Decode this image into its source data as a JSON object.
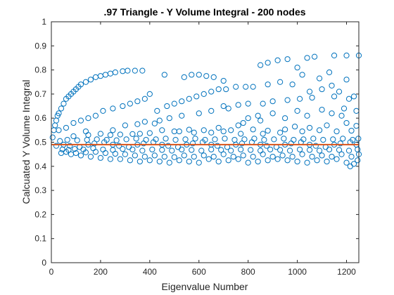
{
  "chart_data": {
    "type": "scatter",
    "title": ".97 Triangle - Y Volume Integral - 200 nodes",
    "xlabel": "Eigenvalue Number",
    "ylabel": "Calcuated Y Volume Integral",
    "xlim": [
      0,
      1250
    ],
    "ylim": [
      0,
      1
    ],
    "xticks": [
      0,
      200,
      400,
      600,
      800,
      1000,
      1200
    ],
    "yticks": [
      0,
      0.1,
      0.2,
      0.3,
      0.4,
      0.5,
      0.6,
      0.7,
      0.8,
      0.9,
      1
    ],
    "grid": false,
    "marker": "open-circle",
    "colors": {
      "markers": "#0072BD",
      "axes": "#262626",
      "reference_line": "#D95319"
    },
    "reference_line": {
      "y": 0.49
    },
    "series": [
      {
        "points": [
          [
            5,
            0.52
          ],
          [
            10,
            0.55
          ],
          [
            15,
            0.57
          ],
          [
            20,
            0.59
          ],
          [
            25,
            0.61
          ],
          [
            30,
            0.62
          ],
          [
            40,
            0.64
          ],
          [
            50,
            0.66
          ],
          [
            60,
            0.68
          ],
          [
            70,
            0.69
          ],
          [
            80,
            0.7
          ],
          [
            90,
            0.71
          ],
          [
            100,
            0.72
          ],
          [
            110,
            0.73
          ],
          [
            120,
            0.74
          ],
          [
            140,
            0.75
          ],
          [
            160,
            0.76
          ],
          [
            180,
            0.77
          ],
          [
            200,
            0.775
          ],
          [
            220,
            0.78
          ],
          [
            240,
            0.785
          ],
          [
            260,
            0.79
          ],
          [
            290,
            0.795
          ],
          [
            310,
            0.797
          ],
          [
            340,
            0.797
          ],
          [
            370,
            0.797
          ],
          [
            460,
            0.78
          ],
          [
            540,
            0.77
          ],
          [
            570,
            0.78
          ],
          [
            600,
            0.78
          ],
          [
            630,
            0.775
          ],
          [
            660,
            0.77
          ],
          [
            700,
            0.755
          ],
          [
            790,
            0.73
          ],
          [
            850,
            0.82
          ],
          [
            880,
            0.83
          ],
          [
            920,
            0.84
          ],
          [
            960,
            0.845
          ],
          [
            1000,
            0.81
          ],
          [
            1040,
            0.85
          ],
          [
            1070,
            0.855
          ],
          [
            1150,
            0.86
          ],
          [
            1200,
            0.86
          ],
          [
            1250,
            0.86
          ],
          [
            1130,
            0.79
          ],
          [
            1020,
            0.78
          ],
          [
            1200,
            0.76
          ],
          [
            1090,
            0.765
          ],
          [
            930,
            0.75
          ],
          [
            880,
            0.74
          ],
          [
            30,
            0.55
          ],
          [
            60,
            0.56
          ],
          [
            90,
            0.58
          ],
          [
            120,
            0.59
          ],
          [
            150,
            0.6
          ],
          [
            180,
            0.61
          ],
          [
            210,
            0.63
          ],
          [
            250,
            0.64
          ],
          [
            290,
            0.65
          ],
          [
            320,
            0.66
          ],
          [
            350,
            0.67
          ],
          [
            380,
            0.68
          ],
          [
            400,
            0.7
          ],
          [
            430,
            0.63
          ],
          [
            470,
            0.65
          ],
          [
            500,
            0.66
          ],
          [
            530,
            0.67
          ],
          [
            560,
            0.68
          ],
          [
            590,
            0.69
          ],
          [
            620,
            0.7
          ],
          [
            650,
            0.71
          ],
          [
            680,
            0.72
          ],
          [
            710,
            0.72
          ],
          [
            750,
            0.73
          ],
          [
            820,
            0.73
          ],
          [
            980,
            0.74
          ],
          [
            1050,
            0.71
          ],
          [
            1100,
            0.72
          ],
          [
            1140,
            0.735
          ],
          [
            1170,
            0.71
          ],
          [
            1230,
            0.69
          ],
          [
            700,
            0.65
          ],
          [
            760,
            0.655
          ],
          [
            800,
            0.66
          ],
          [
            860,
            0.66
          ],
          [
            900,
            0.67
          ],
          [
            960,
            0.675
          ],
          [
            1010,
            0.68
          ],
          [
            1060,
            0.685
          ],
          [
            1150,
            0.69
          ],
          [
            1210,
            0.68
          ],
          [
            600,
            0.62
          ],
          [
            650,
            0.63
          ],
          [
            720,
            0.64
          ],
          [
            480,
            0.6
          ],
          [
            530,
            0.61
          ],
          [
            380,
            0.585
          ],
          [
            440,
            0.59
          ],
          [
            300,
            0.57
          ],
          [
            350,
            0.575
          ],
          [
            420,
            0.578
          ],
          [
            250,
            0.55
          ],
          [
            140,
            0.545
          ],
          [
            800,
            0.6
          ],
          [
            840,
            0.61
          ],
          [
            900,
            0.62
          ],
          [
            1000,
            0.63
          ],
          [
            1100,
            0.635
          ],
          [
            1190,
            0.64
          ],
          [
            1240,
            0.63
          ],
          [
            780,
            0.58
          ],
          [
            850,
            0.59
          ],
          [
            950,
            0.6
          ],
          [
            1040,
            0.61
          ],
          [
            1140,
            0.62
          ],
          [
            1180,
            0.61
          ],
          [
            620,
            0.55
          ],
          [
            680,
            0.56
          ],
          [
            760,
            0.57
          ],
          [
            1120,
            0.57
          ],
          [
            1200,
            0.58
          ],
          [
            450,
            0.55
          ],
          [
            520,
            0.545
          ],
          [
            560,
            0.552
          ],
          [
            90,
            0.525
          ],
          [
            150,
            0.53
          ],
          [
            200,
            0.535
          ],
          [
            240,
            0.53
          ],
          [
            280,
            0.532
          ],
          [
            330,
            0.534
          ],
          [
            360,
            0.535
          ],
          [
            400,
            0.538
          ],
          [
            500,
            0.545
          ],
          [
            580,
            0.54
          ],
          [
            650,
            0.54
          ],
          [
            700,
            0.545
          ],
          [
            730,
            0.55
          ],
          [
            820,
            0.553
          ],
          [
            880,
            0.548
          ],
          [
            950,
            0.553
          ],
          [
            1020,
            0.545
          ],
          [
            1090,
            0.55
          ],
          [
            1160,
            0.545
          ],
          [
            1220,
            0.548
          ],
          [
            1240,
            0.568
          ],
          [
            1050,
            0.56
          ],
          [
            990,
            0.565
          ],
          [
            930,
            0.54
          ],
          [
            860,
            0.535
          ],
          [
            770,
            0.535
          ],
          [
            40,
            0.455
          ],
          [
            80,
            0.45
          ],
          [
            120,
            0.445
          ],
          [
            160,
            0.44
          ],
          [
            200,
            0.435
          ],
          [
            240,
            0.43
          ],
          [
            280,
            0.43
          ],
          [
            320,
            0.425
          ],
          [
            360,
            0.42
          ],
          [
            400,
            0.425
          ],
          [
            440,
            0.42
          ],
          [
            480,
            0.415
          ],
          [
            520,
            0.425
          ],
          [
            560,
            0.42
          ],
          [
            600,
            0.415
          ],
          [
            640,
            0.43
          ],
          [
            680,
            0.42
          ],
          [
            720,
            0.425
          ],
          [
            760,
            0.43
          ],
          [
            800,
            0.415
          ],
          [
            840,
            0.42
          ],
          [
            880,
            0.425
          ],
          [
            920,
            0.43
          ],
          [
            960,
            0.425
          ],
          [
            1000,
            0.42
          ],
          [
            1040,
            0.415
          ],
          [
            1080,
            0.425
          ],
          [
            1120,
            0.42
          ],
          [
            1160,
            0.43
          ],
          [
            1200,
            0.415
          ],
          [
            1230,
            0.41
          ],
          [
            1215,
            0.4
          ],
          [
            1245,
            0.425
          ],
          [
            60,
            0.46
          ],
          [
            100,
            0.455
          ],
          [
            140,
            0.458
          ],
          [
            180,
            0.46
          ],
          [
            220,
            0.455
          ],
          [
            260,
            0.452
          ],
          [
            300,
            0.45
          ],
          [
            340,
            0.445
          ],
          [
            380,
            0.44
          ],
          [
            420,
            0.445
          ],
          [
            460,
            0.44
          ],
          [
            500,
            0.438
          ],
          [
            540,
            0.445
          ],
          [
            580,
            0.44
          ],
          [
            620,
            0.445
          ],
          [
            660,
            0.44
          ],
          [
            700,
            0.45
          ],
          [
            740,
            0.44
          ],
          [
            780,
            0.445
          ],
          [
            820,
            0.44
          ],
          [
            860,
            0.45
          ],
          [
            900,
            0.44
          ],
          [
            940,
            0.445
          ],
          [
            980,
            0.44
          ],
          [
            1020,
            0.45
          ],
          [
            1060,
            0.44
          ],
          [
            1100,
            0.445
          ],
          [
            1140,
            0.44
          ],
          [
            1180,
            0.45
          ],
          [
            1220,
            0.44
          ],
          [
            1250,
            0.45
          ],
          [
            20,
            0.485
          ],
          [
            45,
            0.47
          ],
          [
            70,
            0.468
          ],
          [
            95,
            0.472
          ],
          [
            130,
            0.47
          ],
          [
            170,
            0.475
          ],
          [
            210,
            0.47
          ],
          [
            250,
            0.468
          ],
          [
            290,
            0.472
          ],
          [
            330,
            0.47
          ],
          [
            370,
            0.465
          ],
          [
            410,
            0.47
          ],
          [
            450,
            0.468
          ],
          [
            490,
            0.465
          ],
          [
            530,
            0.47
          ],
          [
            570,
            0.468
          ],
          [
            610,
            0.465
          ],
          [
            650,
            0.47
          ],
          [
            690,
            0.468
          ],
          [
            730,
            0.465
          ],
          [
            770,
            0.47
          ],
          [
            810,
            0.468
          ],
          [
            850,
            0.465
          ],
          [
            890,
            0.47
          ],
          [
            930,
            0.468
          ],
          [
            970,
            0.465
          ],
          [
            1010,
            0.47
          ],
          [
            1050,
            0.468
          ],
          [
            1090,
            0.465
          ],
          [
            1130,
            0.47
          ],
          [
            1170,
            0.468
          ],
          [
            1210,
            0.465
          ],
          [
            1245,
            0.47
          ],
          [
            35,
            0.505
          ],
          [
            65,
            0.51
          ],
          [
            105,
            0.508
          ],
          [
            145,
            0.51
          ],
          [
            185,
            0.512
          ],
          [
            225,
            0.51
          ],
          [
            265,
            0.508
          ],
          [
            305,
            0.512
          ],
          [
            345,
            0.515
          ],
          [
            385,
            0.51
          ],
          [
            425,
            0.512
          ],
          [
            465,
            0.515
          ],
          [
            505,
            0.51
          ],
          [
            545,
            0.512
          ],
          [
            585,
            0.515
          ],
          [
            625,
            0.51
          ],
          [
            665,
            0.512
          ],
          [
            705,
            0.515
          ],
          [
            745,
            0.51
          ],
          [
            785,
            0.512
          ],
          [
            825,
            0.515
          ],
          [
            865,
            0.51
          ],
          [
            905,
            0.512
          ],
          [
            945,
            0.515
          ],
          [
            985,
            0.51
          ],
          [
            1025,
            0.512
          ],
          [
            1065,
            0.515
          ],
          [
            1105,
            0.51
          ],
          [
            1145,
            0.512
          ],
          [
            1185,
            0.515
          ],
          [
            1225,
            0.51
          ],
          [
            1248,
            0.515
          ],
          [
            50,
            0.49
          ],
          [
            150,
            0.49
          ],
          [
            250,
            0.49
          ],
          [
            350,
            0.49
          ],
          [
            450,
            0.49
          ],
          [
            550,
            0.49
          ],
          [
            650,
            0.49
          ],
          [
            750,
            0.49
          ],
          [
            850,
            0.49
          ],
          [
            950,
            0.49
          ],
          [
            1050,
            0.49
          ],
          [
            1150,
            0.49
          ],
          [
            1240,
            0.49
          ],
          [
            75,
            0.485
          ],
          [
            175,
            0.495
          ],
          [
            275,
            0.485
          ],
          [
            375,
            0.495
          ],
          [
            475,
            0.485
          ],
          [
            575,
            0.495
          ],
          [
            675,
            0.485
          ],
          [
            775,
            0.495
          ],
          [
            875,
            0.485
          ],
          [
            975,
            0.495
          ],
          [
            1075,
            0.485
          ],
          [
            1175,
            0.495
          ],
          [
            115,
            0.48
          ],
          [
            215,
            0.5
          ],
          [
            315,
            0.48
          ],
          [
            415,
            0.5
          ],
          [
            515,
            0.48
          ],
          [
            615,
            0.5
          ],
          [
            715,
            0.48
          ],
          [
            815,
            0.5
          ],
          [
            915,
            0.48
          ],
          [
            1015,
            0.5
          ],
          [
            1115,
            0.48
          ],
          [
            1215,
            0.5
          ]
        ]
      }
    ]
  }
}
